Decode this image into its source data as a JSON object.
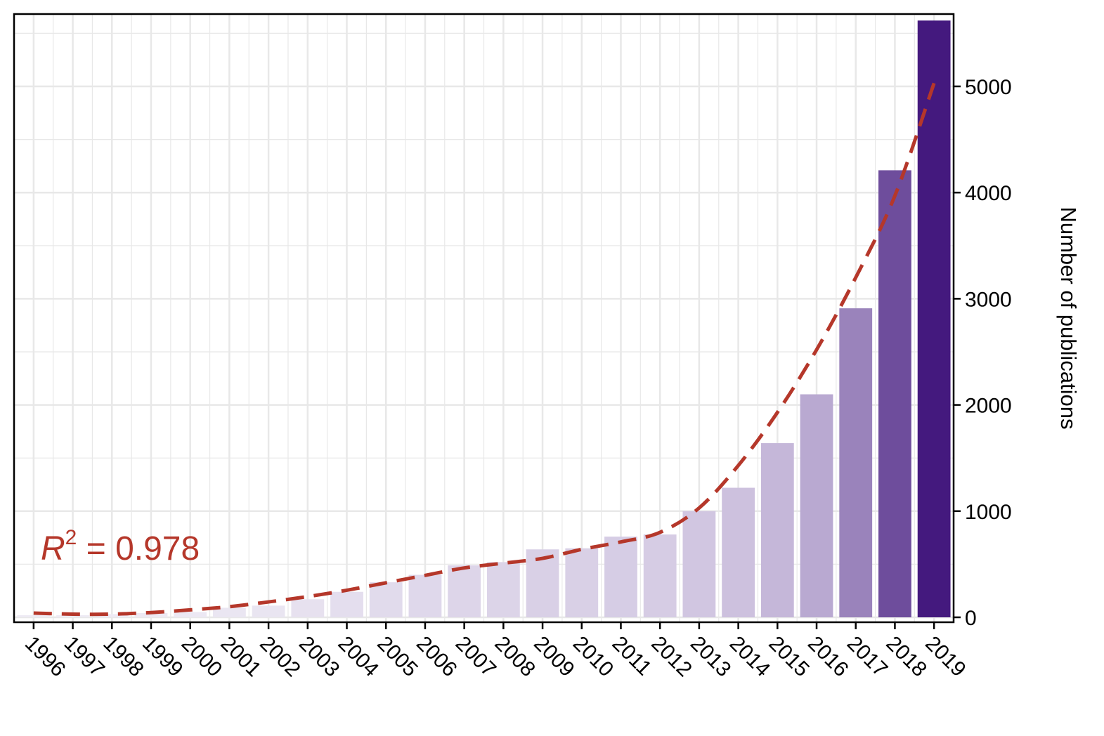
{
  "chart_data": {
    "type": "bar",
    "categories": [
      "1996",
      "1997",
      "1998",
      "1999",
      "2000",
      "2001",
      "2002",
      "2003",
      "2004",
      "2005",
      "2006",
      "2007",
      "2008",
      "2009",
      "2010",
      "2011",
      "2012",
      "2013",
      "2014",
      "2015",
      "2016",
      "2017",
      "2018",
      "2019"
    ],
    "values": [
      20,
      20,
      30,
      40,
      50,
      90,
      110,
      170,
      240,
      330,
      400,
      490,
      520,
      640,
      650,
      760,
      780,
      1000,
      1220,
      1640,
      2100,
      2910,
      4210,
      5620
    ],
    "trend": {
      "style": "dashed",
      "color": "#B5372A",
      "values": [
        40,
        30,
        30,
        45,
        70,
        100,
        145,
        195,
        255,
        325,
        395,
        465,
        510,
        555,
        640,
        710,
        800,
        1030,
        1430,
        1930,
        2520,
        3200,
        3970,
        5030
      ]
    },
    "annotation": {
      "symbol": "R",
      "superscript": "2",
      "text": " = 0.978",
      "color": "#B5372A"
    },
    "title": "",
    "xlabel": "",
    "ylabel": "Number of publications",
    "yaxis_position": "right",
    "ylim": [
      0,
      5700
    ],
    "yticks": [
      "0",
      "1000",
      "2000",
      "3000",
      "4000",
      "5000"
    ],
    "grid": true,
    "colors": {
      "bar_light": "#F1EEF6",
      "bar_mid": "#C0B1D6",
      "bar_dark": "#44197E",
      "grid": "#E8E8E8"
    }
  }
}
